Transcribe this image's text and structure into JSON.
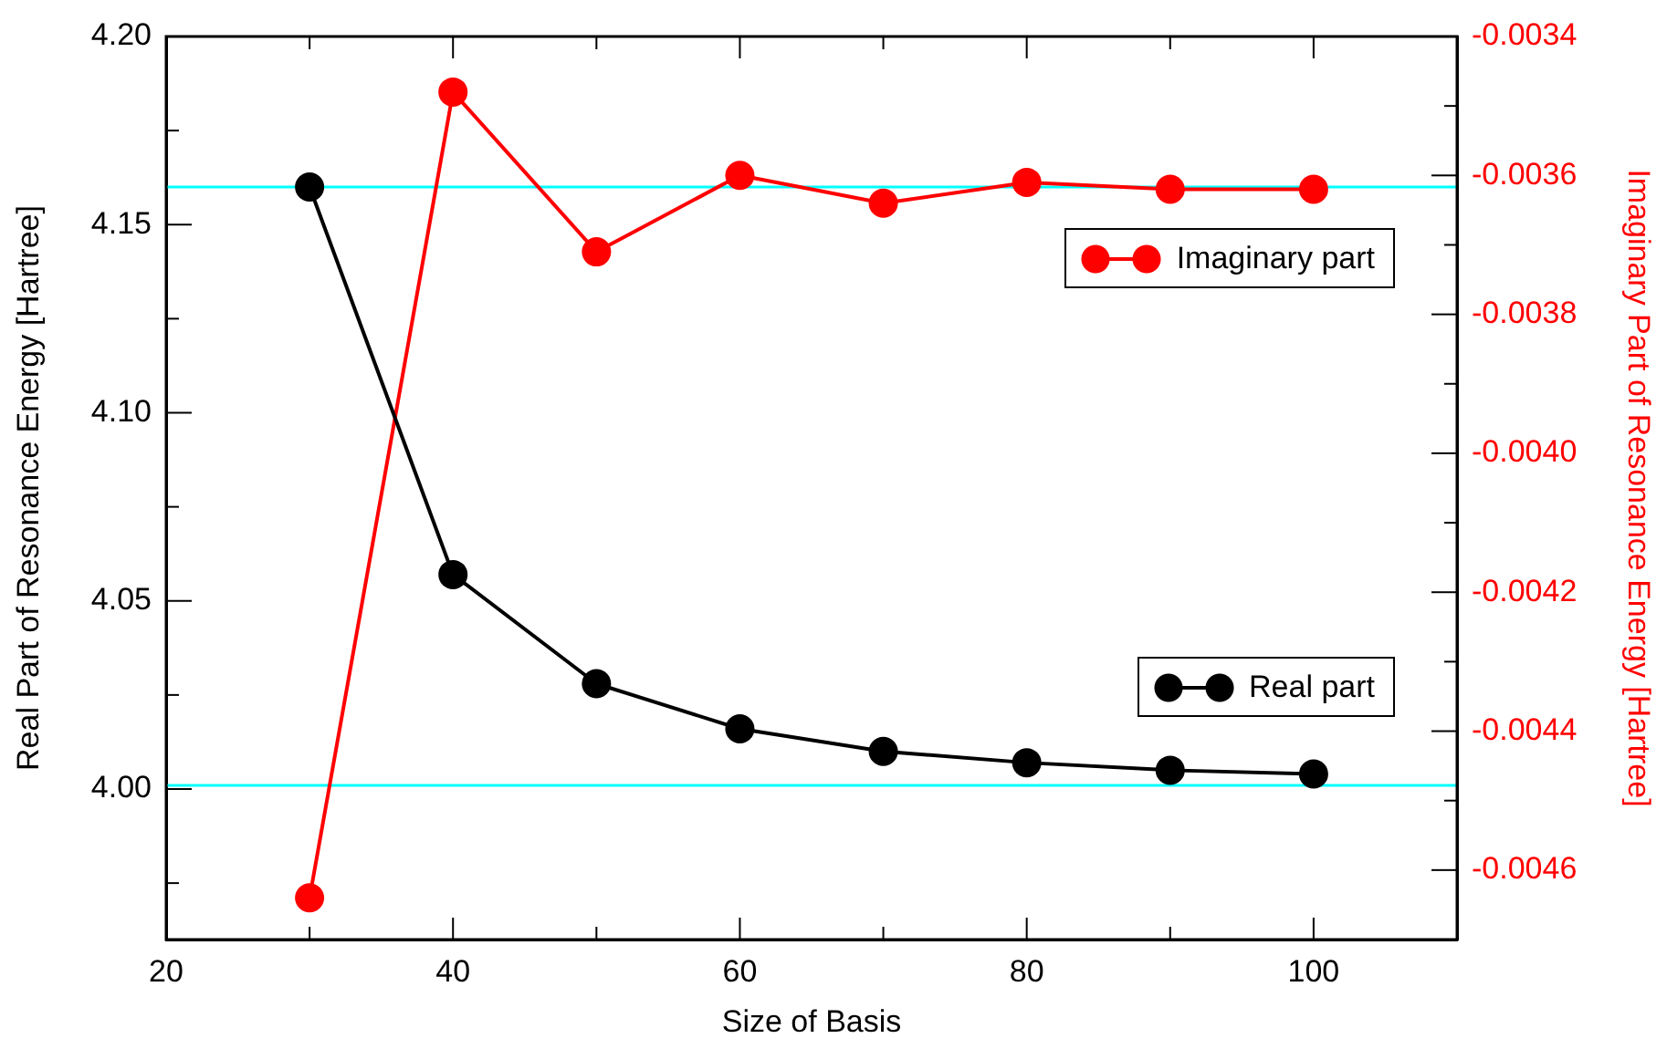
{
  "chart_data": {
    "type": "line",
    "xlabel": "Size of Basis",
    "ylabel": "Real Part of Resonance Energy [Hartree]",
    "y2label": "Imaginary Part of Resonance Energy [Hartree]",
    "x": [
      30,
      40,
      50,
      60,
      70,
      80,
      90,
      100
    ],
    "series": [
      {
        "name": "Real part",
        "color": "#000000",
        "values": [
          4.16,
          4.057,
          4.028,
          4.016,
          4.01,
          4.007,
          4.005,
          4.004
        ]
      },
      {
        "name": "Imaginary part",
        "color": "#ff0000",
        "axis": "y2",
        "values": [
          -0.00464,
          -0.00348,
          -0.00371,
          -0.0036,
          -0.00364,
          -0.00361,
          -0.00362,
          -0.00362
        ]
      }
    ],
    "xlim": [
      20,
      110
    ],
    "xticks": [
      20,
      {
        "value": 30,
        "label": null
      },
      40,
      {
        "value": 50,
        "label": null
      },
      60,
      {
        "value": 70,
        "label": null
      },
      80,
      {
        "value": 90,
        "label": null
      },
      100
    ],
    "ylim": [
      3.96,
      4.2
    ],
    "yticks": [
      {
        "value": 3.975,
        "label": null
      },
      {
        "value": 4.0,
        "label": "4.00"
      },
      {
        "value": 4.025,
        "label": null
      },
      {
        "value": 4.05,
        "label": "4.05"
      },
      {
        "value": 4.075,
        "label": null
      },
      {
        "value": 4.1,
        "label": "4.10"
      },
      {
        "value": 4.125,
        "label": null
      },
      {
        "value": 4.15,
        "label": "4.15"
      },
      {
        "value": 4.175,
        "label": null
      },
      {
        "value": 4.2,
        "label": "4.20"
      }
    ],
    "y2lim": [
      -0.0047,
      -0.0034
    ],
    "y2ticks": [
      -0.0046,
      {
        "value": -0.0045,
        "label": null
      },
      -0.0044,
      {
        "value": -0.0043,
        "label": null
      },
      -0.0042,
      {
        "value": -0.0041,
        "label": null
      },
      {
        "value": -0.004,
        "label": "-0.0040"
      },
      {
        "value": -0.0039,
        "label": null
      },
      -0.0038,
      {
        "value": -0.0037,
        "label": null
      },
      -0.0036,
      {
        "value": -0.0035,
        "label": null
      },
      -0.0034
    ],
    "ref_lines": [
      {
        "axis": "y",
        "value": 4.16,
        "color": "#00ffff"
      },
      {
        "axis": "y",
        "value": 4.001,
        "color": "#00ffff"
      }
    ],
    "legend": "right",
    "marker": "circle",
    "line_style": "solid",
    "grid": false
  }
}
